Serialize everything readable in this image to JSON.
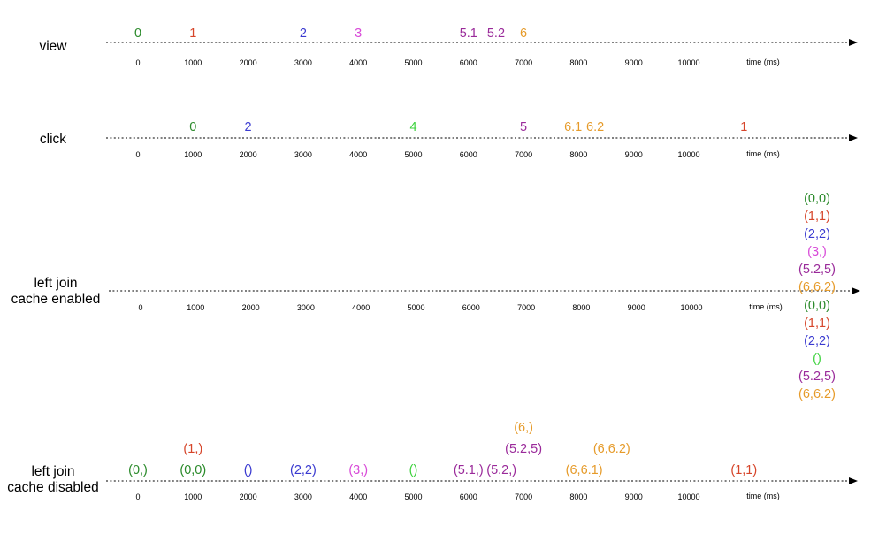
{
  "colors": {
    "green": "#2a8a2a",
    "red": "#d6452a",
    "blue": "#3a3ad0",
    "magenta": "#d84ad8",
    "purple": "#9a2a9a",
    "orange": "#e69b2a",
    "lime": "#3ed23e"
  },
  "ticks": [
    "0",
    "1000",
    "2000",
    "3000",
    "4000",
    "5000",
    "6000",
    "7000",
    "8000",
    "9000",
    "10000"
  ],
  "axis_unit": "time (ms)",
  "rows": [
    {
      "id": "view",
      "label_lines": [
        "view"
      ],
      "events": [
        {
          "text": "0",
          "time": 0,
          "color": "green",
          "stack": 0
        },
        {
          "text": "1",
          "time": 1000,
          "color": "red",
          "stack": 0
        },
        {
          "text": "2",
          "time": 3000,
          "color": "blue",
          "stack": 0
        },
        {
          "text": "3",
          "time": 4000,
          "color": "magenta",
          "stack": 0
        },
        {
          "text": "5.1",
          "time": 6000,
          "color": "purple",
          "stack": 0
        },
        {
          "text": "5.2",
          "time": 6500,
          "color": "purple",
          "stack": 0
        },
        {
          "text": "6",
          "time": 7000,
          "color": "orange",
          "stack": 0
        }
      ]
    },
    {
      "id": "click",
      "label_lines": [
        "click"
      ],
      "events": [
        {
          "text": "0",
          "time": 1000,
          "color": "green",
          "stack": 0
        },
        {
          "text": "2",
          "time": 2000,
          "color": "blue",
          "stack": 0
        },
        {
          "text": "4",
          "time": 5000,
          "color": "lime",
          "stack": 0
        },
        {
          "text": "5",
          "time": 7000,
          "color": "purple",
          "stack": 0
        },
        {
          "text": "6.1",
          "time": 7900,
          "color": "orange",
          "stack": 0
        },
        {
          "text": "6.2",
          "time": 8300,
          "color": "orange",
          "stack": 0
        },
        {
          "text": "1",
          "time": 11000,
          "color": "red",
          "stack": 0
        }
      ]
    },
    {
      "id": "left-join-cache-enabled",
      "label_lines": [
        "left join",
        "cache enabled"
      ],
      "above_final": [
        {
          "text": "(0,0)",
          "color": "green"
        },
        {
          "text": "(1,1)",
          "color": "red"
        },
        {
          "text": "(2,2)",
          "color": "blue"
        },
        {
          "text": "(3,)",
          "color": "magenta"
        },
        {
          "text": "(5.2,5)",
          "color": "purple"
        },
        {
          "text": "(6,6.2)",
          "color": "orange"
        }
      ],
      "below_final": [
        {
          "text": "(0,0)",
          "color": "green"
        },
        {
          "text": "(1,1)",
          "color": "red"
        },
        {
          "text": "(2,2)",
          "color": "blue"
        },
        {
          "text": "()",
          "color": "lime"
        },
        {
          "text": "(5.2,5)",
          "color": "purple"
        },
        {
          "text": "(6,6.2)",
          "color": "orange"
        }
      ]
    },
    {
      "id": "left-join-cache-disabled",
      "label_lines": [
        "left join",
        "cache disabled"
      ],
      "events": [
        {
          "text": "(0,)",
          "time": 0,
          "color": "green",
          "stack": 0
        },
        {
          "text": "(0,0)",
          "time": 1000,
          "color": "green",
          "stack": 0
        },
        {
          "text": "(1,)",
          "time": 1000,
          "color": "red",
          "stack": 1
        },
        {
          "text": "()",
          "time": 2000,
          "color": "blue",
          "stack": 0
        },
        {
          "text": "(2,2)",
          "time": 3000,
          "color": "blue",
          "stack": 0
        },
        {
          "text": "(3,)",
          "time": 4000,
          "color": "magenta",
          "stack": 0
        },
        {
          "text": "()",
          "time": 5000,
          "color": "lime",
          "stack": 0
        },
        {
          "text": "(5.1,)",
          "time": 6000,
          "color": "purple",
          "stack": 0
        },
        {
          "text": "(5.2,)",
          "time": 6600,
          "color": "purple",
          "stack": 0
        },
        {
          "text": "(5.2,5)",
          "time": 7000,
          "color": "purple",
          "stack": 1
        },
        {
          "text": "(6,)",
          "time": 7000,
          "color": "orange",
          "stack": 2
        },
        {
          "text": "(6,6.1)",
          "time": 8100,
          "color": "orange",
          "stack": 0
        },
        {
          "text": "(6,6.2)",
          "time": 8600,
          "color": "orange",
          "stack": 1
        },
        {
          "text": "(1,1)",
          "time": 11000,
          "color": "red",
          "stack": 0
        }
      ]
    }
  ]
}
